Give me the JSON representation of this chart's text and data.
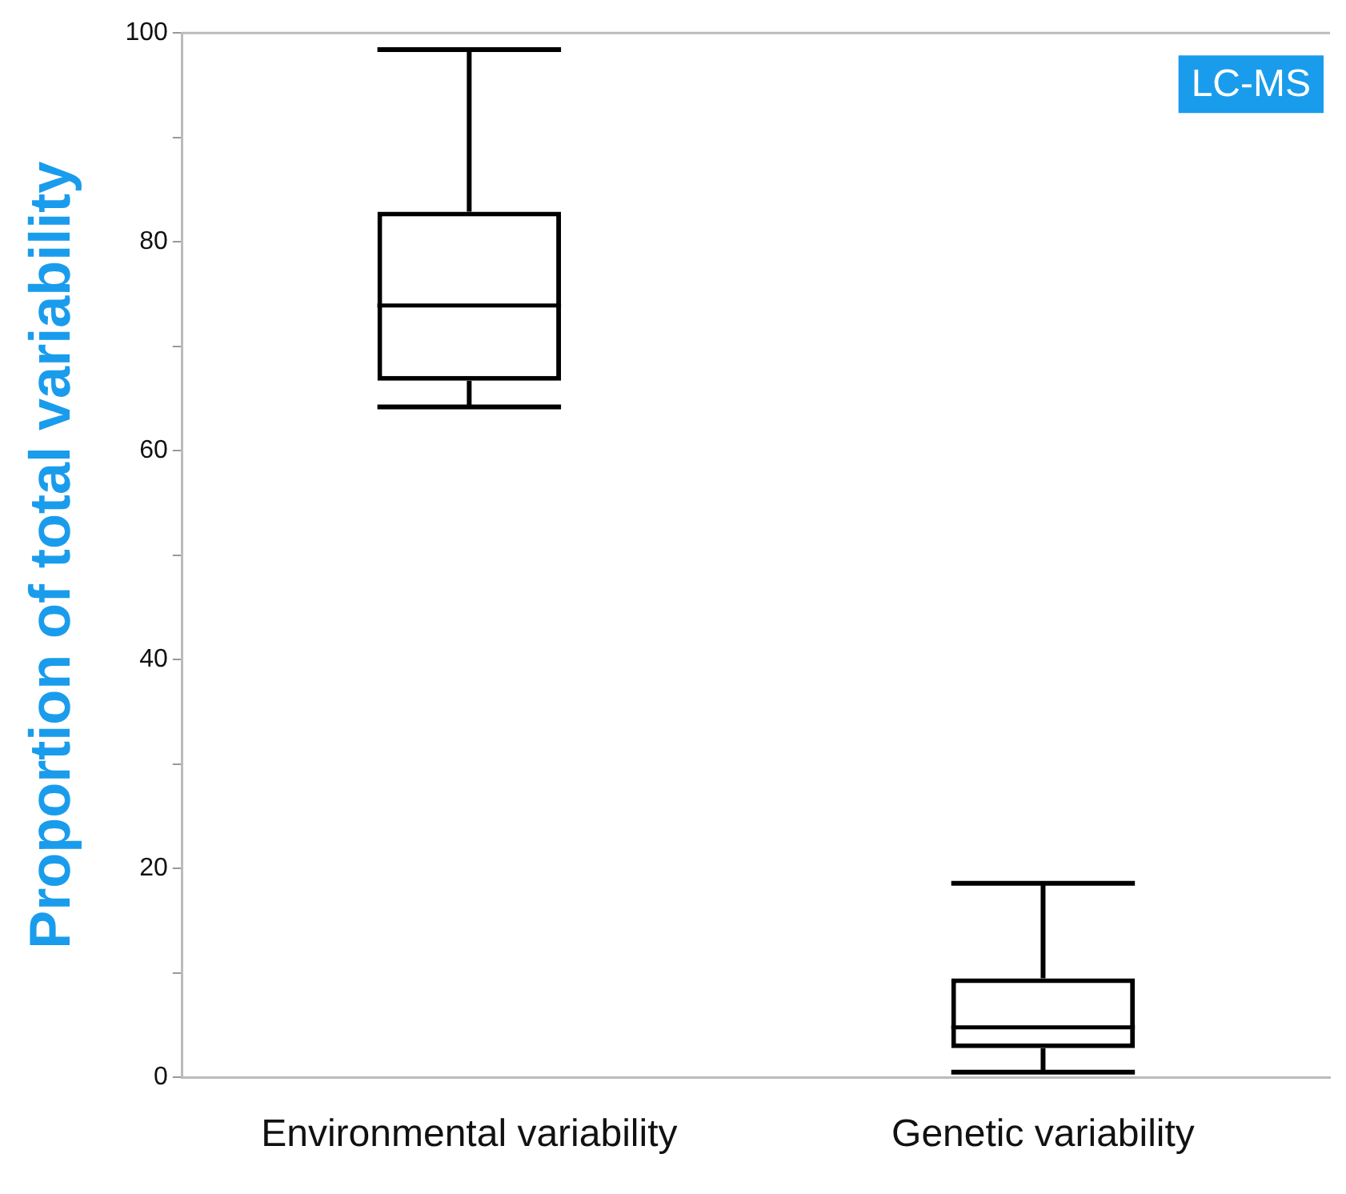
{
  "chart_data": {
    "type": "box",
    "ylabel": "Proportion of total variability",
    "categories": [
      "Environmental variability",
      "Genetic variability"
    ],
    "boxes": [
      {
        "low": 64.2,
        "q1": 66.7,
        "median": 73.9,
        "q3": 82.9,
        "high": 98.4
      },
      {
        "low": 0.5,
        "q1": 2.8,
        "median": 4.8,
        "q3": 9.5,
        "high": 18.6
      }
    ],
    "color": "#000000",
    "ylim": [
      0,
      100
    ],
    "yticks": [
      0,
      {
        "value": 10,
        "label": null
      },
      20,
      {
        "value": 30,
        "label": null
      },
      40,
      {
        "value": 50,
        "label": null
      },
      60,
      {
        "value": 70,
        "label": null
      },
      80,
      {
        "value": 90,
        "label": null
      },
      100
    ],
    "grid": false,
    "legend": false,
    "annotations": [
      "LC-MS"
    ]
  }
}
